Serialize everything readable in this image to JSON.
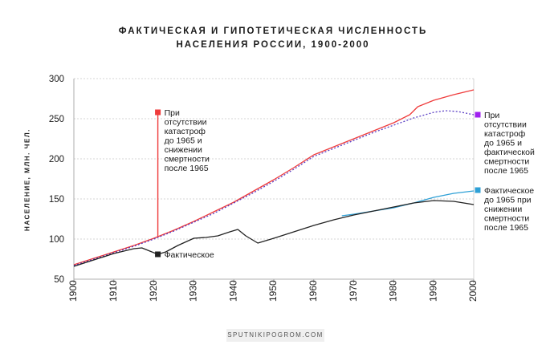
{
  "title_line1": "ФАКТИЧЕСКАЯ И ГИПОТЕТИЧЕСКАЯ ЧИСЛЕННОСТЬ",
  "title_line2": "НАСЕЛЕНИЯ РОССИИ, 1900-2000",
  "footer": "SPUTNIKIPOGROM.COM",
  "chart_data": {
    "type": "line",
    "title": "ФАКТИЧЕСКАЯ И ГИПОТЕТИЧЕСКАЯ ЧИСЛЕННОСТЬ НАСЕЛЕНИЯ РОССИИ, 1900-2000",
    "ylabel": "НАСЕЛЕНИЕ, МЛН. ЧЕЛ.",
    "xlabel": "",
    "xlim": [
      1900,
      2000
    ],
    "ylim": [
      50,
      300
    ],
    "xticks": [
      1900,
      1910,
      1920,
      1930,
      1940,
      1950,
      1960,
      1970,
      1980,
      1990,
      2000
    ],
    "yticks": [
      50,
      100,
      150,
      200,
      250,
      300
    ],
    "grid": "horizontal dotted",
    "series": [
      {
        "key": "red",
        "color": "#ef3b3b",
        "style": "solid",
        "x": [
          1900,
          1905,
          1910,
          1915,
          1920,
          1925,
          1930,
          1935,
          1940,
          1945,
          1950,
          1955,
          1960,
          1965,
          1970,
          1975,
          1980,
          1984,
          1986,
          1990,
          1995,
          2000
        ],
        "y": [
          68,
          76,
          84,
          92,
          101,
          111,
          122,
          134,
          146,
          160,
          174,
          189,
          205,
          215,
          225,
          235,
          245,
          255,
          265,
          273,
          280,
          286
        ]
      },
      {
        "key": "purple",
        "color": "#5a3fc4",
        "style": "dotted",
        "x": [
          1900,
          1905,
          1910,
          1915,
          1920,
          1925,
          1930,
          1935,
          1940,
          1945,
          1950,
          1955,
          1960,
          1965,
          1970,
          1975,
          1980,
          1985,
          1990,
          1993,
          1996,
          2000
        ],
        "y": [
          67,
          75,
          83,
          91,
          100,
          110,
          121,
          132,
          145,
          158,
          172,
          187,
          203,
          213,
          223,
          233,
          242,
          251,
          258,
          260,
          259,
          255
        ]
      },
      {
        "key": "blue",
        "color": "#2ea0d6",
        "style": "solid",
        "x": [
          1967,
          1970,
          1975,
          1980,
          1985,
          1990,
          1995,
          2000
        ],
        "y": [
          129,
          131,
          135,
          139,
          145,
          152,
          157,
          160
        ]
      },
      {
        "key": "black",
        "color": "#222222",
        "style": "solid",
        "x": [
          1900,
          1905,
          1910,
          1915,
          1917,
          1919,
          1921,
          1923,
          1926,
          1930,
          1933,
          1936,
          1939,
          1941,
          1943,
          1946,
          1950,
          1955,
          1960,
          1965,
          1970,
          1975,
          1980,
          1985,
          1990,
          1995,
          2000
        ],
        "y": [
          66,
          74,
          82,
          88,
          89,
          85,
          81,
          84,
          92,
          101,
          102,
          104,
          109,
          112,
          104,
          95,
          101,
          109,
          117,
          124,
          130,
          135,
          140,
          145,
          148,
          147,
          143
        ]
      }
    ],
    "annotations": [
      {
        "key": "red_label",
        "color": "#ef3b3b",
        "text": [
          "При",
          "отсутствии",
          "катастроф",
          "до 1965 и",
          "снижении",
          "смертности",
          "после 1965"
        ],
        "x": 1921,
        "y": 258,
        "line_to_y": 103
      },
      {
        "key": "black_label",
        "color": "#222222",
        "text": [
          "Фактическое"
        ],
        "x": 1921,
        "y": 81
      },
      {
        "key": "purple_label",
        "color": "#a020f0",
        "text": [
          "При",
          "отсутствии",
          "катастроф",
          "до 1965 и",
          "фактической",
          "смертности",
          "после 1965"
        ],
        "x": 2001,
        "y": 255
      },
      {
        "key": "blue_label",
        "color": "#2ea0d6",
        "text": [
          "Фактическое",
          "до 1965 при",
          "снижении",
          "смертности",
          "после 1965"
        ],
        "x": 2001,
        "y": 161
      }
    ]
  }
}
